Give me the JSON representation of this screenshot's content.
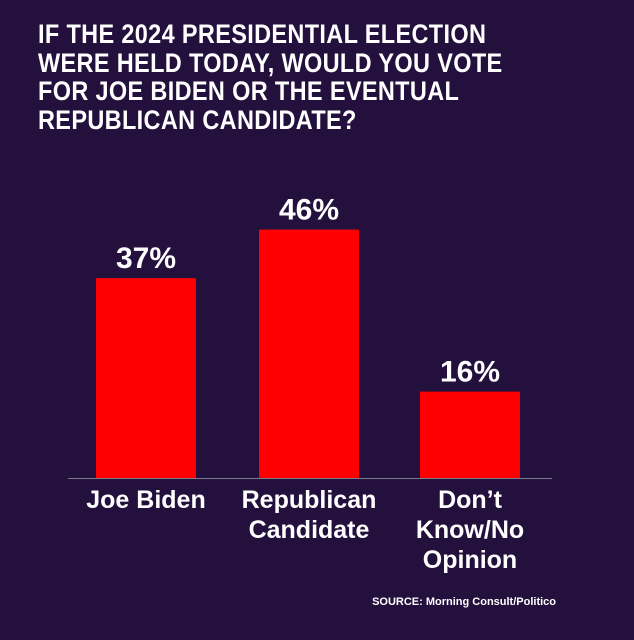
{
  "colors": {
    "background": "#23103d",
    "bar": "#ff0000",
    "text": "#ffffff",
    "baseline": "#7a7a8a"
  },
  "title_lines": [
    "IF THE 2024 PRESIDENTIAL ELECTION",
    "WERE HELD TODAY, WOULD YOU VOTE",
    "FOR JOE BIDEN OR THE EVENTUAL",
    "REPUBLICAN CANDIDATE?"
  ],
  "source": "SOURCE: Morning Consult/Politico",
  "chart_data": {
    "type": "bar",
    "title": "IF THE 2024 PRESIDENTIAL ELECTION WERE HELD TODAY, WOULD YOU VOTE FOR JOE BIDEN OR THE EVENTUAL REPUBLICAN CANDIDATE?",
    "categories": [
      "Joe Biden",
      "Republican Candidate",
      "Don't Know/No Opinion"
    ],
    "category_lines": [
      [
        "Joe Biden"
      ],
      [
        "Republican",
        "Candidate"
      ],
      [
        "Don’t",
        "Know/No",
        "Opinion"
      ]
    ],
    "values": [
      37,
      46,
      16
    ],
    "value_labels": [
      "37%",
      "46%",
      "16%"
    ],
    "unit": "%",
    "ylim": [
      0,
      50
    ],
    "xlabel": "",
    "ylabel": "",
    "grid": false
  }
}
